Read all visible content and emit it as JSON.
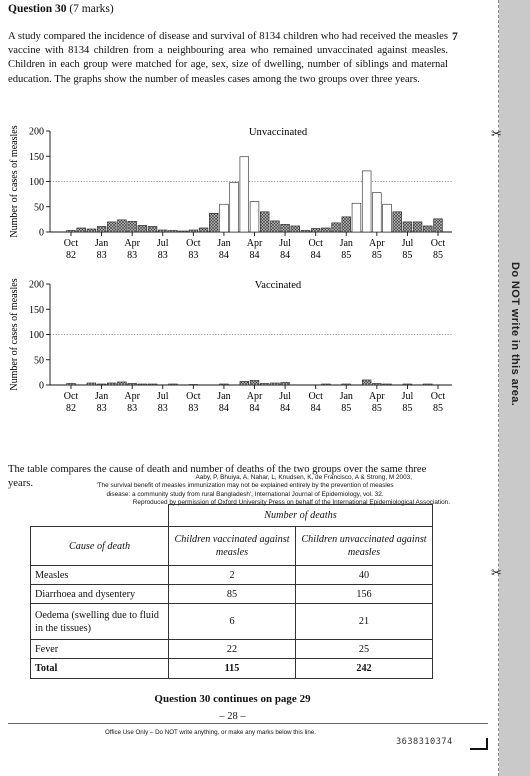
{
  "question": {
    "number_label": "Question 30",
    "marks_label": "(7 marks)",
    "marks_column": "7",
    "intro": "A study compared the incidence of disease and survival of 8134 children who had received the measles vaccine with 8134 children from a neighbouring area who remained unvaccinated against measles. Children in each group were matched for age, sex, size of dwelling, number of siblings and maternal education. The graphs show the number of measles cases among the two groups over three years."
  },
  "chart_data": [
    {
      "type": "bar",
      "title": "Unvaccinated",
      "ylabel": "Number of cases of measles",
      "xlabel": "",
      "ylim": [
        0,
        200
      ],
      "yticks": [
        "0",
        "50",
        "100",
        "150",
        "200"
      ],
      "reference_line": 100,
      "xtick_labels": [
        [
          "Oct",
          "82"
        ],
        [
          "Jan",
          "83"
        ],
        [
          "Apr",
          "83"
        ],
        [
          "Jul",
          "83"
        ],
        [
          "Oct",
          "83"
        ],
        [
          "Jan",
          "84"
        ],
        [
          "Apr",
          "84"
        ],
        [
          "Jul",
          "84"
        ],
        [
          "Oct",
          "84"
        ],
        [
          "Jan",
          "85"
        ],
        [
          "Apr",
          "85"
        ],
        [
          "Jul",
          "85"
        ],
        [
          "Oct",
          "85"
        ]
      ],
      "values": [
        3,
        8,
        6,
        11,
        20,
        24,
        21,
        13,
        11,
        4,
        3,
        2,
        4,
        8,
        37,
        55,
        98,
        149,
        60,
        40,
        22,
        15,
        12,
        3,
        7,
        8,
        18,
        30,
        57,
        121,
        78,
        55,
        40,
        20,
        20,
        12,
        26
      ],
      "shading": [
        "solid",
        "solid",
        "solid",
        "solid",
        "solid",
        "solid",
        "solid",
        "solid",
        "solid",
        "solid",
        "solid",
        "solid",
        "solid",
        "solid",
        "solid",
        "open",
        "open",
        "open",
        "open",
        "solid",
        "solid",
        "solid",
        "solid",
        "solid",
        "solid",
        "solid",
        "solid",
        "solid",
        "open",
        "open",
        "open",
        "open",
        "solid",
        "solid",
        "solid",
        "solid",
        "solid"
      ]
    },
    {
      "type": "bar",
      "title": "Vaccinated",
      "ylabel": "Number of cases of measles",
      "xlabel": "",
      "ylim": [
        0,
        200
      ],
      "yticks": [
        "0",
        "50",
        "100",
        "150",
        "200"
      ],
      "reference_line": 100,
      "xtick_labels": [
        [
          "Oct",
          "82"
        ],
        [
          "Jan",
          "83"
        ],
        [
          "Apr",
          "83"
        ],
        [
          "Jul",
          "83"
        ],
        [
          "Oct",
          "83"
        ],
        [
          "Jan",
          "84"
        ],
        [
          "Apr",
          "84"
        ],
        [
          "Jul",
          "84"
        ],
        [
          "Oct",
          "84"
        ],
        [
          "Jan",
          "85"
        ],
        [
          "Apr",
          "85"
        ],
        [
          "Jul",
          "85"
        ],
        [
          "Oct",
          "85"
        ]
      ],
      "values": [
        3,
        0,
        4,
        2,
        4,
        6,
        3,
        2,
        2,
        0,
        2,
        0,
        1,
        0,
        0,
        2,
        0,
        7,
        9,
        3,
        4,
        5,
        0,
        0,
        0,
        2,
        0,
        2,
        0,
        10,
        3,
        2,
        0,
        2,
        0,
        2,
        0
      ],
      "shading": [
        "solid",
        "solid",
        "solid",
        "solid",
        "solid",
        "solid",
        "solid",
        "solid",
        "solid",
        "solid",
        "solid",
        "solid",
        "solid",
        "solid",
        "solid",
        "solid",
        "solid",
        "solid",
        "solid",
        "solid",
        "solid",
        "solid",
        "solid",
        "solid",
        "solid",
        "solid",
        "solid",
        "solid",
        "solid",
        "solid",
        "solid",
        "solid",
        "solid",
        "solid",
        "solid",
        "solid",
        "solid"
      ]
    }
  ],
  "citation": {
    "line1": "Aaby, P, Bhuiya, A, Nahar, L, Knudsen, K, de Francisco, A & Strong, M 2003,",
    "line2": "'The survival benefit of measles immunization may not be explained entirely by the prevention of measles",
    "line3": "disease: a community study from rural Bangladesh', International Journal of Epidemiology, vol. 32.",
    "line4": "Reproduced by permission of Oxford University Press on behalf of the International Epidemiological Association."
  },
  "table_intro": "The table compares the cause of death and number of deaths of the two groups over the same three years.",
  "table": {
    "group_header": "Number of deaths",
    "col_cause": "Cause of death",
    "col_vaccinated": "Children vaccinated against measles",
    "col_unvaccinated": "Children unvaccinated against measles",
    "rows": [
      {
        "cause": "Measles",
        "vaccinated": "2",
        "unvaccinated": "40"
      },
      {
        "cause": "Diarrhoea and dysentery",
        "vaccinated": "85",
        "unvaccinated": "156"
      },
      {
        "cause": "Oedema (swelling due to fluid in the tissues)",
        "vaccinated": "6",
        "unvaccinated": "21"
      },
      {
        "cause": "Fever",
        "vaccinated": "22",
        "unvaccinated": "25"
      }
    ],
    "total": {
      "cause": "Total",
      "vaccinated": "115",
      "unvaccinated": "242"
    }
  },
  "footer": {
    "continues": "Question 30 continues on page 29",
    "page_number": "– 28 –",
    "office_use": "Office Use Only – Do NOT write anything, or make any marks below this line.",
    "barcode_number": "3638310374"
  },
  "side_strip": {
    "text": "Do NOT write in this area.",
    "scissors": "✂"
  }
}
